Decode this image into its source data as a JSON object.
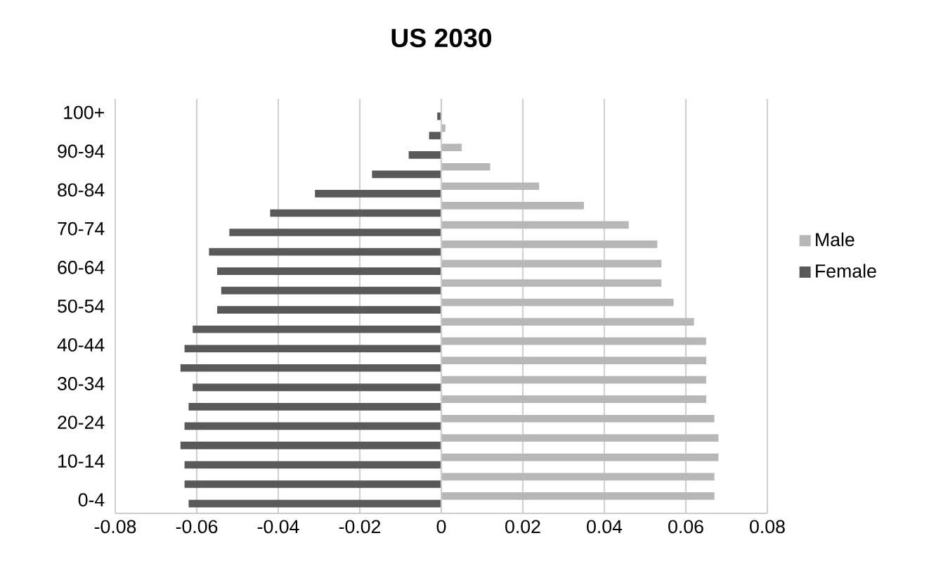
{
  "chart_data": {
    "type": "bar",
    "orientation": "horizontal",
    "title": "US 2030",
    "categories": [
      "100+",
      null,
      "90-94",
      null,
      "80-84",
      null,
      "70-74",
      null,
      "60-64",
      null,
      "50-54",
      null,
      "40-44",
      null,
      "30-34",
      null,
      "20-24",
      null,
      "10-14",
      null,
      "0-4"
    ],
    "series": [
      {
        "name": "Male",
        "color": "#b7b7b9",
        "values": [
          0,
          0.001,
          0.005,
          0.012,
          0.024,
          0.035,
          0.046,
          0.053,
          0.054,
          0.054,
          0.057,
          0.062,
          0.065,
          0.065,
          0.065,
          0.065,
          0.067,
          0.068,
          0.068,
          0.067,
          0.067
        ]
      },
      {
        "name": "Female",
        "color": "#595959",
        "values": [
          -0.001,
          -0.003,
          -0.008,
          -0.017,
          -0.031,
          -0.042,
          -0.052,
          -0.057,
          -0.055,
          -0.054,
          -0.055,
          -0.061,
          -0.063,
          -0.064,
          -0.061,
          -0.062,
          -0.063,
          -0.064,
          -0.063,
          -0.063,
          -0.062
        ]
      }
    ],
    "xlim": [
      -0.08,
      0.08
    ],
    "xticks": [
      -0.08,
      -0.06,
      -0.04,
      -0.02,
      0,
      0.02,
      0.04,
      0.06,
      0.08
    ],
    "grid": "x",
    "legend": "right"
  }
}
